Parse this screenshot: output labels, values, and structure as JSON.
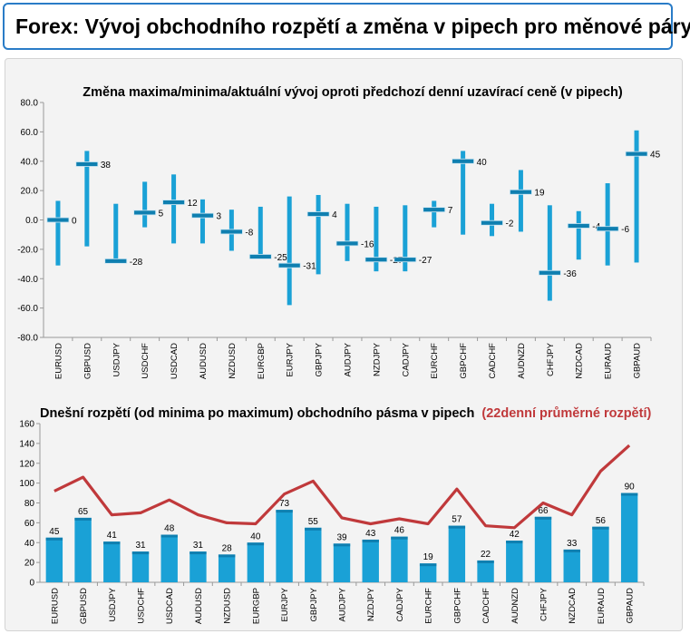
{
  "header": {
    "title": "Forex: Vývoj obchodního rozpětí a změna v pipech pro měnové páry"
  },
  "colors": {
    "bar": "#1aa1d6",
    "bar_dark": "#0f7fb0",
    "line": "#c0393b",
    "border": "#2a7cc7"
  },
  "chart_data": [
    {
      "type": "bar",
      "title": "Změna maxima/minima/aktuální vývoj oproti předchozí denní uzavírací ceně (v pipech)",
      "categories": [
        "EURUSD",
        "GBPUSD",
        "USDJPY",
        "USDCHF",
        "USDCAD",
        "AUDUSD",
        "NZDUSD",
        "EURGBP",
        "EURJPY",
        "GBPJPY",
        "AUDJPY",
        "NZDJPY",
        "CADJPY",
        "EURCHF",
        "GBPCHF",
        "CADCHF",
        "AUDNZD",
        "CHFJPY",
        "NZDCAD",
        "EURAUD",
        "GBPAUD"
      ],
      "series": [
        {
          "name": "",
          "high": [
            13,
            47,
            11,
            26,
            31,
            14,
            7,
            9,
            16,
            17,
            11,
            9,
            10,
            13,
            47,
            11,
            34,
            10,
            6,
            25,
            61
          ]
        },
        {
          "name": "",
          "low": [
            -31,
            -18,
            -29,
            -5,
            -16,
            -16,
            -21,
            -25,
            -58,
            -37,
            -28,
            -35,
            -35,
            -5,
            -10,
            -11,
            -8,
            -55,
            -27,
            -31,
            -29
          ]
        },
        {
          "name": "",
          "values": [
            0,
            38,
            -28,
            5,
            12,
            3,
            -8,
            -25,
            -31,
            4,
            -16,
            -27,
            -27,
            7,
            40,
            -2,
            19,
            -36,
            -4,
            -6,
            45
          ]
        }
      ],
      "value_labels": [
        "0",
        "38",
        "-28",
        "5",
        "12",
        "3",
        "-8",
        "-25",
        "-31",
        "4",
        "-16",
        "-27",
        "-27",
        "7",
        "40",
        "-2",
        "19",
        "-36",
        "-4",
        "-6",
        "45"
      ],
      "ylim": [
        -80,
        80
      ],
      "yticks": [
        "80.0",
        "60.0",
        "40.0",
        "20.0",
        "0.0",
        "-20.0",
        "-40.0",
        "-60.0",
        "-80.0"
      ],
      "grid": false
    },
    {
      "type": "bar",
      "title": "Dnešní rozpětí (od minima po maximum) obchodního pásma v pipech",
      "title_highlight": "(22denní průměrné rozpětí)",
      "categories": [
        "EURUSD",
        "GBPUSD",
        "USDJPY",
        "USDCHF",
        "USDCAD",
        "AUDUSD",
        "NZDUSD",
        "EURGBP",
        "EURJPY",
        "GBPJPY",
        "AUDJPY",
        "NZDJPY",
        "CADJPY",
        "EURCHF",
        "GBPCHF",
        "CADCHF",
        "AUDNZD",
        "CHFJPY",
        "NZDCAD",
        "EURAUD",
        "GBPAUD"
      ],
      "series": [
        {
          "name": "",
          "values": [
            45,
            65,
            41,
            31,
            48,
            31,
            28,
            40,
            73,
            55,
            39,
            43,
            46,
            19,
            57,
            22,
            42,
            66,
            33,
            56,
            90
          ]
        },
        {
          "name": "",
          "type": "line",
          "values": [
            92,
            106,
            68,
            70,
            83,
            68,
            60,
            59,
            89,
            102,
            65,
            59,
            64,
            59,
            94,
            57,
            55,
            80,
            68,
            112,
            138
          ]
        }
      ],
      "value_labels": [
        "45",
        "65",
        "41",
        "31",
        "48",
        "31",
        "28",
        "40",
        "73",
        "55",
        "39",
        "43",
        "46",
        "19",
        "57",
        "22",
        "42",
        "66",
        "33",
        "56",
        "90"
      ],
      "ylim": [
        0,
        160
      ],
      "yticks": [
        "160",
        "140",
        "120",
        "100",
        "80",
        "60",
        "40",
        "20",
        "0"
      ],
      "grid": false
    }
  ]
}
